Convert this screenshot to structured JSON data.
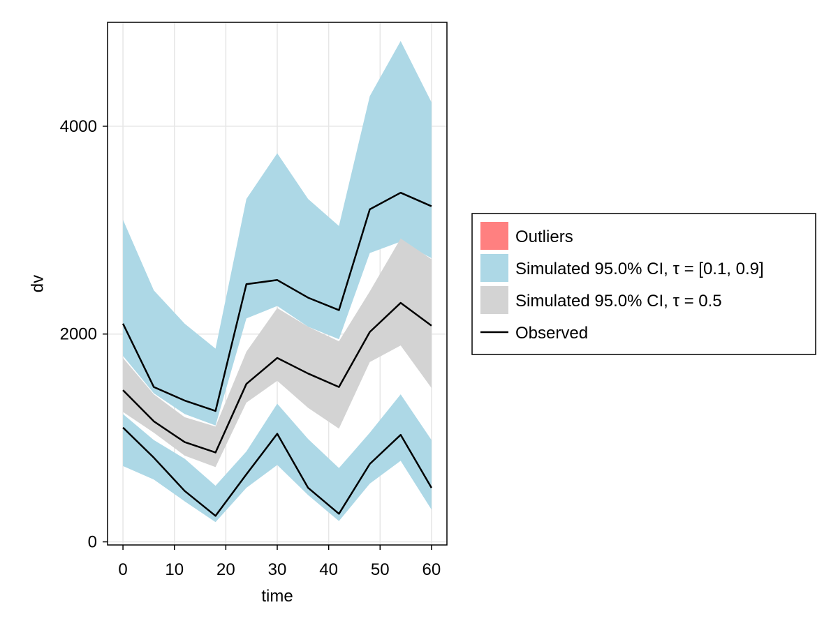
{
  "chart_data": {
    "type": "area",
    "title": "",
    "xlabel": "time",
    "ylabel": "dv",
    "xlim": [
      -3,
      63
    ],
    "ylim": [
      -30,
      5000
    ],
    "x_ticks": [
      0,
      10,
      20,
      30,
      40,
      50,
      60
    ],
    "y_ticks": [
      0,
      2000,
      4000
    ],
    "grid": true,
    "legend_position": "right",
    "x": [
      0,
      6,
      12,
      18,
      24,
      30,
      36,
      42,
      48,
      54,
      60
    ],
    "bands": [
      {
        "name": "Simulated 95.0% CI, τ = [0.1, 0.9]",
        "color": "#add8e6",
        "quantile": "upper",
        "lower": [
          1790,
          1430,
          1230,
          1120,
          2150,
          2270,
          2070,
          1950,
          2780,
          2890,
          2730
        ],
        "upper": [
          3100,
          2420,
          2100,
          1860,
          3300,
          3740,
          3300,
          3040,
          4290,
          4820,
          4230
        ]
      },
      {
        "name": "Simulated 95.0% CI, τ = [0.1, 0.9]",
        "color": "#add8e6",
        "quantile": "lower",
        "lower": [
          730,
          600,
          390,
          190,
          520,
          740,
          450,
          200,
          560,
          780,
          310
        ],
        "upper": [
          1230,
          980,
          800,
          540,
          870,
          1330,
          990,
          710,
          1050,
          1420,
          980
        ]
      },
      {
        "name": "Simulated 95.0% CI, τ = 0.5",
        "color": "#d3d3d3",
        "quantile": "median",
        "lower": [
          1250,
          1050,
          830,
          720,
          1340,
          1550,
          1290,
          1090,
          1730,
          1890,
          1480
        ],
        "upper": [
          1770,
          1420,
          1200,
          1110,
          1830,
          2250,
          2070,
          1930,
          2410,
          2920,
          2720
        ]
      }
    ],
    "series": [
      {
        "name": "Observed",
        "color": "#000000",
        "values": [
          2100,
          1490,
          1360,
          1260,
          2480,
          2520,
          2350,
          2230,
          3200,
          3360,
          3230
        ]
      },
      {
        "name": "Observed",
        "color": "#000000",
        "values": [
          1460,
          1160,
          960,
          860,
          1520,
          1770,
          1620,
          1490,
          2020,
          2300,
          2080
        ]
      },
      {
        "name": "Observed",
        "color": "#000000",
        "values": [
          1100,
          810,
          490,
          250,
          650,
          1040,
          520,
          270,
          750,
          1030,
          520
        ]
      }
    ],
    "legend": [
      {
        "label": "Outliers",
        "kind": "patch",
        "color": "#ff8080"
      },
      {
        "label": "Simulated 95.0% CI, τ = [0.1, 0.9]",
        "kind": "patch",
        "color": "#add8e6"
      },
      {
        "label": "Simulated 95.0% CI, τ = 0.5",
        "kind": "patch",
        "color": "#d3d3d3"
      },
      {
        "label": "Observed",
        "kind": "line",
        "color": "#000000"
      }
    ]
  }
}
